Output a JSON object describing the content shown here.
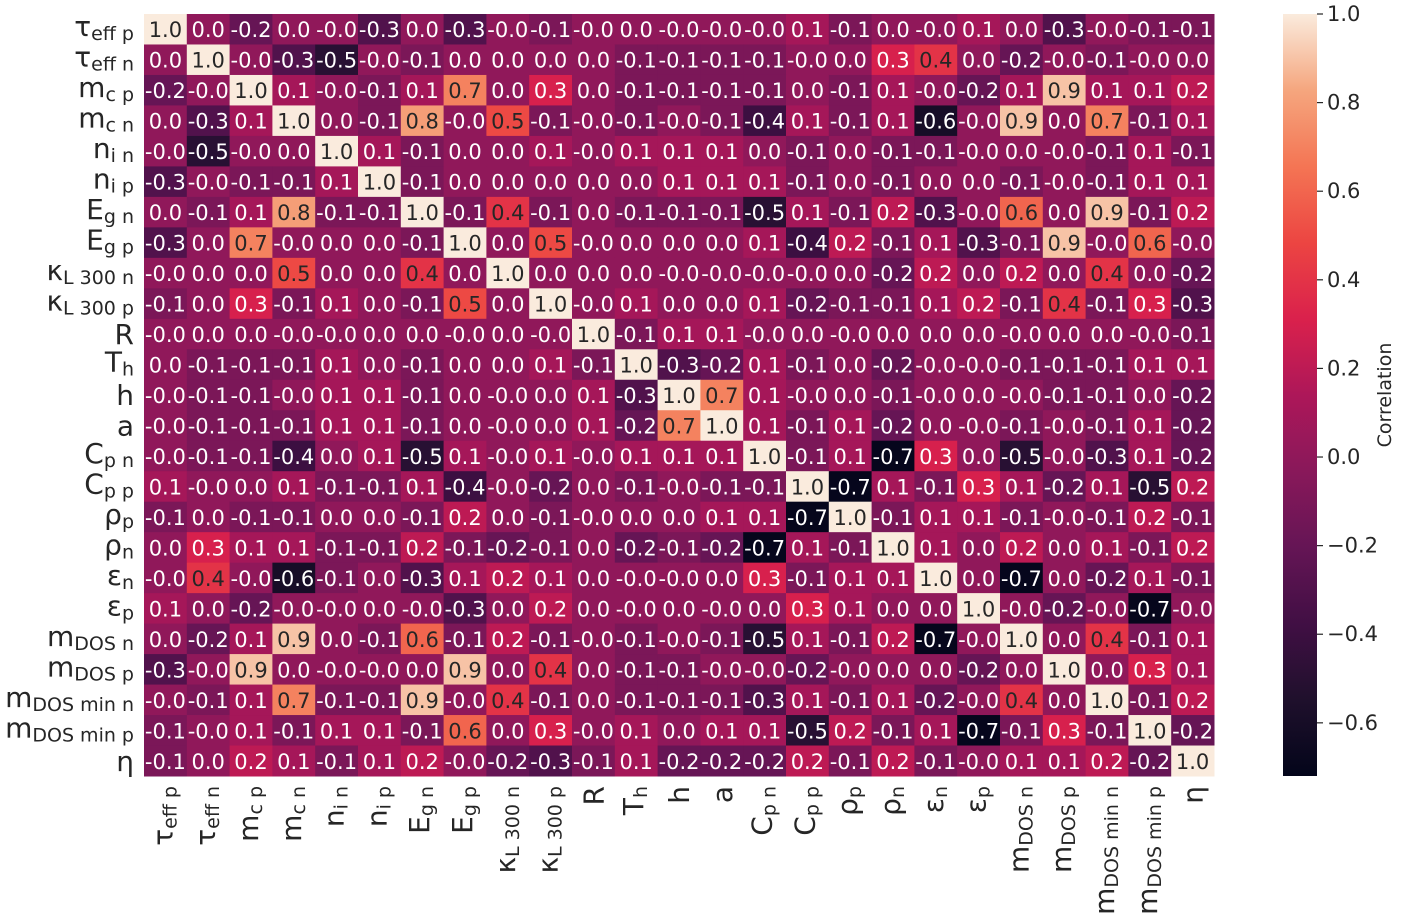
{
  "chart_data": {
    "type": "heatmap",
    "colormap": "rocket",
    "vmin": -0.72,
    "vmax": 1.0,
    "labels": [
      {
        "base": "τ",
        "sub": "eff p"
      },
      {
        "base": "τ",
        "sub": "eff n"
      },
      {
        "base": "m",
        "sub": "c p"
      },
      {
        "base": "m",
        "sub": "c n"
      },
      {
        "base": "n",
        "sub": "i n"
      },
      {
        "base": "n",
        "sub": "i p"
      },
      {
        "base": "E",
        "sub": "g n"
      },
      {
        "base": "E",
        "sub": "g p"
      },
      {
        "base": "κ",
        "sub": "L 300 n"
      },
      {
        "base": "κ",
        "sub": "L 300 p"
      },
      {
        "base": "R",
        "sub": ""
      },
      {
        "base": "T",
        "sub": "h"
      },
      {
        "base": "h",
        "sub": ""
      },
      {
        "base": "a",
        "sub": ""
      },
      {
        "base": "C",
        "sub": "p n"
      },
      {
        "base": "C",
        "sub": "p p"
      },
      {
        "base": "ρ",
        "sub": "p"
      },
      {
        "base": "ρ",
        "sub": "n"
      },
      {
        "base": "ε",
        "sub": "n"
      },
      {
        "base": "ε",
        "sub": "p"
      },
      {
        "base": "m",
        "sub": "DOS n"
      },
      {
        "base": "m",
        "sub": "DOS p"
      },
      {
        "base": "m",
        "sub": "DOS min n"
      },
      {
        "base": "m",
        "sub": "DOS min p"
      },
      {
        "base": "η",
        "sub": ""
      }
    ],
    "values": [
      [
        "1.0",
        "0.0",
        "-0.2",
        "0.0",
        "-0.0",
        "-0.3",
        "0.0",
        "-0.3",
        "-0.0",
        "-0.1",
        "-0.0",
        "0.0",
        "-0.0",
        "-0.0",
        "-0.0",
        "0.1",
        "-0.1",
        "0.0",
        "-0.0",
        "0.1",
        "0.0",
        "-0.3",
        "-0.0",
        "-0.1",
        "-0.1"
      ],
      [
        "0.0",
        "1.0",
        "-0.0",
        "-0.3",
        "-0.5",
        "-0.0",
        "-0.1",
        "0.0",
        "0.0",
        "0.0",
        "0.0",
        "-0.1",
        "-0.1",
        "-0.1",
        "-0.1",
        "-0.0",
        "0.0",
        "0.3",
        "0.4",
        "0.0",
        "-0.2",
        "-0.0",
        "-0.1",
        "-0.0",
        "0.0"
      ],
      [
        "-0.2",
        "-0.0",
        "1.0",
        "0.1",
        "-0.0",
        "-0.1",
        "0.1",
        "0.7",
        "0.0",
        "0.3",
        "0.0",
        "-0.1",
        "-0.1",
        "-0.1",
        "-0.1",
        "0.0",
        "-0.1",
        "0.1",
        "-0.0",
        "-0.2",
        "0.1",
        "0.9",
        "0.1",
        "0.1",
        "0.2"
      ],
      [
        "0.0",
        "-0.3",
        "0.1",
        "1.0",
        "0.0",
        "-0.1",
        "0.8",
        "-0.0",
        "0.5",
        "-0.1",
        "-0.0",
        "-0.1",
        "-0.0",
        "-0.1",
        "-0.4",
        "0.1",
        "-0.1",
        "0.1",
        "-0.6",
        "-0.0",
        "0.9",
        "0.0",
        "0.7",
        "-0.1",
        "0.1"
      ],
      [
        "-0.0",
        "-0.5",
        "-0.0",
        "0.0",
        "1.0",
        "0.1",
        "-0.1",
        "0.0",
        "0.0",
        "0.1",
        "-0.0",
        "0.1",
        "0.1",
        "0.1",
        "0.0",
        "-0.1",
        "0.0",
        "-0.1",
        "-0.1",
        "-0.0",
        "0.0",
        "-0.0",
        "-0.1",
        "0.1",
        "-0.1"
      ],
      [
        "-0.3",
        "-0.0",
        "-0.1",
        "-0.1",
        "0.1",
        "1.0",
        "-0.1",
        "0.0",
        "0.0",
        "0.0",
        "0.0",
        "0.0",
        "0.1",
        "0.1",
        "0.1",
        "-0.1",
        "0.0",
        "-0.1",
        "0.0",
        "0.0",
        "-0.1",
        "-0.0",
        "-0.1",
        "0.1",
        "0.1"
      ],
      [
        "0.0",
        "-0.1",
        "0.1",
        "0.8",
        "-0.1",
        "-0.1",
        "1.0",
        "-0.1",
        "0.4",
        "-0.1",
        "0.0",
        "-0.1",
        "-0.1",
        "-0.1",
        "-0.5",
        "0.1",
        "-0.1",
        "0.2",
        "-0.3",
        "-0.0",
        "0.6",
        "0.0",
        "0.9",
        "-0.1",
        "0.2"
      ],
      [
        "-0.3",
        "0.0",
        "0.7",
        "-0.0",
        "0.0",
        "0.0",
        "-0.1",
        "1.0",
        "0.0",
        "0.5",
        "-0.0",
        "0.0",
        "0.0",
        "0.0",
        "0.1",
        "-0.4",
        "0.2",
        "-0.1",
        "0.1",
        "-0.3",
        "-0.1",
        "0.9",
        "-0.0",
        "0.6",
        "-0.0"
      ],
      [
        "-0.0",
        "0.0",
        "0.0",
        "0.5",
        "0.0",
        "0.0",
        "0.4",
        "0.0",
        "1.0",
        "0.0",
        "0.0",
        "0.0",
        "-0.0",
        "-0.0",
        "-0.0",
        "-0.0",
        "0.0",
        "-0.2",
        "0.2",
        "0.0",
        "0.2",
        "0.0",
        "0.4",
        "0.0",
        "-0.2"
      ],
      [
        "-0.1",
        "0.0",
        "0.3",
        "-0.1",
        "0.1",
        "0.0",
        "-0.1",
        "0.5",
        "0.0",
        "1.0",
        "-0.0",
        "0.1",
        "0.0",
        "0.0",
        "0.1",
        "-0.2",
        "-0.1",
        "-0.1",
        "0.1",
        "0.2",
        "-0.1",
        "0.4",
        "-0.1",
        "0.3",
        "-0.3"
      ],
      [
        "-0.0",
        "0.0",
        "0.0",
        "-0.0",
        "-0.0",
        "0.0",
        "0.0",
        "-0.0",
        "0.0",
        "-0.0",
        "1.0",
        "-0.1",
        "0.1",
        "0.1",
        "-0.0",
        "0.0",
        "-0.0",
        "0.0",
        "0.0",
        "0.0",
        "-0.0",
        "0.0",
        "0.0",
        "-0.0",
        "-0.1"
      ],
      [
        "0.0",
        "-0.1",
        "-0.1",
        "-0.1",
        "0.1",
        "0.0",
        "-0.1",
        "0.0",
        "0.0",
        "0.1",
        "-0.1",
        "1.0",
        "-0.3",
        "-0.2",
        "0.1",
        "-0.1",
        "0.0",
        "-0.2",
        "-0.0",
        "-0.0",
        "-0.1",
        "-0.1",
        "-0.1",
        "0.1",
        "0.1"
      ],
      [
        "-0.0",
        "-0.1",
        "-0.1",
        "-0.0",
        "0.1",
        "0.1",
        "-0.1",
        "0.0",
        "-0.0",
        "0.0",
        "0.1",
        "-0.3",
        "1.0",
        "0.7",
        "0.1",
        "-0.0",
        "0.0",
        "-0.1",
        "-0.0",
        "0.0",
        "-0.0",
        "-0.1",
        "-0.1",
        "0.0",
        "-0.2"
      ],
      [
        "-0.0",
        "-0.1",
        "-0.1",
        "-0.1",
        "0.1",
        "0.1",
        "-0.1",
        "0.0",
        "-0.0",
        "0.0",
        "0.1",
        "-0.2",
        "0.7",
        "1.0",
        "0.1",
        "-0.1",
        "0.1",
        "-0.2",
        "0.0",
        "-0.0",
        "-0.1",
        "-0.0",
        "-0.1",
        "0.1",
        "-0.2"
      ],
      [
        "-0.0",
        "-0.1",
        "-0.1",
        "-0.4",
        "0.0",
        "0.1",
        "-0.5",
        "0.1",
        "-0.0",
        "0.1",
        "-0.0",
        "0.1",
        "0.1",
        "0.1",
        "1.0",
        "-0.1",
        "0.1",
        "-0.7",
        "0.3",
        "0.0",
        "-0.5",
        "-0.0",
        "-0.3",
        "0.1",
        "-0.2"
      ],
      [
        "0.1",
        "-0.0",
        "0.0",
        "0.1",
        "-0.1",
        "-0.1",
        "0.1",
        "-0.4",
        "-0.0",
        "-0.2",
        "0.0",
        "-0.1",
        "-0.0",
        "-0.1",
        "-0.1",
        "1.0",
        "-0.7",
        "0.1",
        "-0.1",
        "0.3",
        "0.1",
        "-0.2",
        "0.1",
        "-0.5",
        "0.2"
      ],
      [
        "-0.1",
        "0.0",
        "-0.1",
        "-0.1",
        "0.0",
        "0.0",
        "-0.1",
        "0.2",
        "0.0",
        "-0.1",
        "-0.0",
        "0.0",
        "0.0",
        "0.1",
        "0.1",
        "-0.7",
        "1.0",
        "-0.1",
        "0.1",
        "0.1",
        "-0.1",
        "-0.0",
        "-0.1",
        "0.2",
        "-0.1"
      ],
      [
        "0.0",
        "0.3",
        "0.1",
        "0.1",
        "-0.1",
        "-0.1",
        "0.2",
        "-0.1",
        "-0.2",
        "-0.1",
        "0.0",
        "-0.2",
        "-0.1",
        "-0.2",
        "-0.7",
        "0.1",
        "-0.1",
        "1.0",
        "0.1",
        "0.0",
        "0.2",
        "0.0",
        "0.1",
        "-0.1",
        "0.2"
      ],
      [
        "-0.0",
        "0.4",
        "-0.0",
        "-0.6",
        "-0.1",
        "0.0",
        "-0.3",
        "0.1",
        "0.2",
        "0.1",
        "0.0",
        "-0.0",
        "-0.0",
        "0.0",
        "0.3",
        "-0.1",
        "0.1",
        "0.1",
        "1.0",
        "0.0",
        "-0.7",
        "0.0",
        "-0.2",
        "0.1",
        "-0.1"
      ],
      [
        "0.1",
        "0.0",
        "-0.2",
        "-0.0",
        "-0.0",
        "0.0",
        "-0.0",
        "-0.3",
        "0.0",
        "0.2",
        "0.0",
        "-0.0",
        "0.0",
        "-0.0",
        "0.0",
        "0.3",
        "0.1",
        "0.0",
        "0.0",
        "1.0",
        "-0.0",
        "-0.2",
        "-0.0",
        "-0.7",
        "-0.0"
      ],
      [
        "0.0",
        "-0.2",
        "0.1",
        "0.9",
        "0.0",
        "-0.1",
        "0.6",
        "-0.1",
        "0.2",
        "-0.1",
        "-0.0",
        "-0.1",
        "-0.0",
        "-0.1",
        "-0.5",
        "0.1",
        "-0.1",
        "0.2",
        "-0.7",
        "-0.0",
        "1.0",
        "0.0",
        "0.4",
        "-0.1",
        "0.1"
      ],
      [
        "-0.3",
        "-0.0",
        "0.9",
        "0.0",
        "-0.0",
        "-0.0",
        "0.0",
        "0.9",
        "0.0",
        "0.4",
        "0.0",
        "-0.1",
        "-0.1",
        "-0.0",
        "-0.0",
        "-0.2",
        "-0.0",
        "0.0",
        "0.0",
        "-0.2",
        "0.0",
        "1.0",
        "0.0",
        "0.3",
        "0.1"
      ],
      [
        "-0.0",
        "-0.1",
        "0.1",
        "0.7",
        "-0.1",
        "-0.1",
        "0.9",
        "-0.0",
        "0.4",
        "-0.1",
        "0.0",
        "-0.1",
        "-0.1",
        "-0.1",
        "-0.3",
        "0.1",
        "-0.1",
        "0.1",
        "-0.2",
        "-0.0",
        "0.4",
        "0.0",
        "1.0",
        "-0.1",
        "0.2"
      ],
      [
        "-0.1",
        "-0.0",
        "0.1",
        "-0.1",
        "0.1",
        "0.1",
        "-0.1",
        "0.6",
        "0.0",
        "0.3",
        "-0.0",
        "0.1",
        "0.0",
        "0.1",
        "0.1",
        "-0.5",
        "0.2",
        "-0.1",
        "0.1",
        "-0.7",
        "-0.1",
        "0.3",
        "-0.1",
        "1.0",
        "-0.2"
      ],
      [
        "-0.1",
        "0.0",
        "0.2",
        "0.1",
        "-0.1",
        "0.1",
        "0.2",
        "-0.0",
        "-0.2",
        "-0.3",
        "-0.1",
        "0.1",
        "-0.2",
        "-0.2",
        "-0.2",
        "0.2",
        "-0.1",
        "0.2",
        "-0.1",
        "-0.0",
        "0.1",
        "0.1",
        "0.2",
        "-0.2",
        "1.0"
      ]
    ],
    "colorbar": {
      "label": "Correlation",
      "ticks": [
        "1.0",
        "0.8",
        "0.6",
        "0.4",
        "0.2",
        "0.0",
        "−0.2",
        "−0.4",
        "−0.6"
      ],
      "tick_values": [
        1.0,
        0.8,
        0.6,
        0.4,
        0.2,
        0.0,
        -0.2,
        -0.4,
        -0.6
      ]
    }
  }
}
